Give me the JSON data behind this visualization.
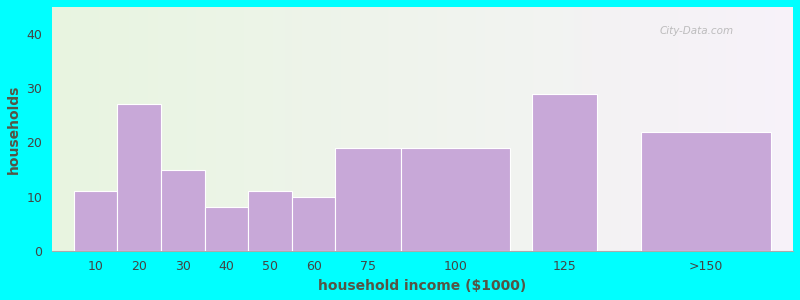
{
  "xlabel": "household income ($1000)",
  "ylabel": "households",
  "bar_labels": [
    "10",
    "20",
    "30",
    "40",
    "50",
    "60",
    "75",
    "100",
    "125",
    ">150"
  ],
  "bar_values": [
    11,
    27,
    15,
    8,
    11,
    10,
    19,
    19,
    29,
    22
  ],
  "bar_color": "#C8A8D8",
  "bar_edgecolor": "#FFFFFF",
  "ylim": [
    0,
    45
  ],
  "yticks": [
    0,
    10,
    20,
    30,
    40
  ],
  "background_outer": "#00FFFF",
  "background_plot_left": "#E8F5E0",
  "background_plot_right": "#F5F0F8",
  "title_fontsize": 13,
  "subtitle_fontsize": 11,
  "subtitle_color": "#666655",
  "title_color": "#111111",
  "axis_label_fontsize": 10,
  "axis_label_color": "#555544",
  "watermark": "City-Data.com",
  "bar_widths": [
    10,
    10,
    10,
    10,
    10,
    10,
    15,
    25,
    15,
    30
  ],
  "bar_lefts": [
    5,
    15,
    25,
    35,
    45,
    55,
    65,
    80,
    110,
    135
  ]
}
